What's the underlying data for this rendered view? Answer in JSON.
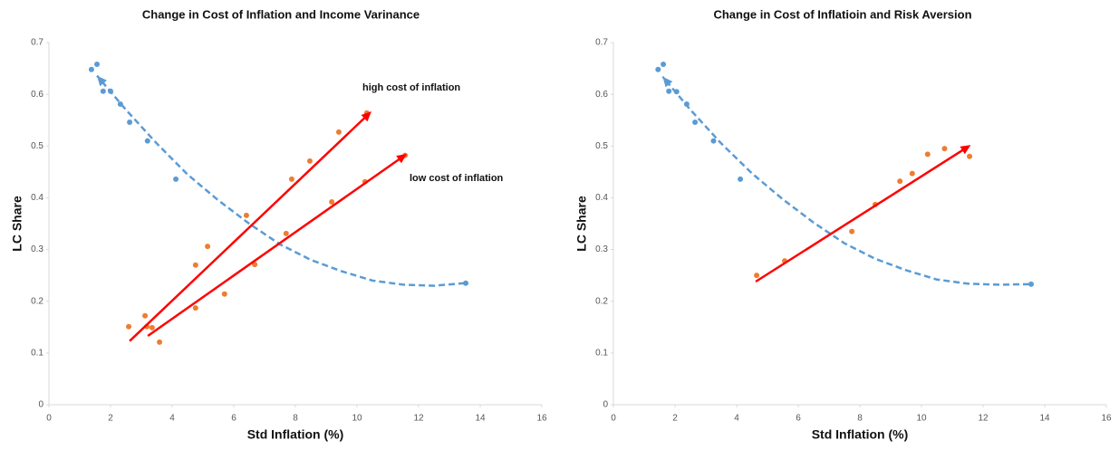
{
  "chart_data": [
    {
      "type": "scatter",
      "title": "Change in Cost of Inflation and Income Varinance",
      "x_label": "Std Inflation (%)",
      "y_label": "LC Share",
      "xlim": [
        0,
        16
      ],
      "ylim": [
        0,
        0.7
      ],
      "xticks": [
        0,
        2,
        4,
        6,
        8,
        10,
        12,
        14,
        16
      ],
      "yticks": [
        0,
        0.1,
        0.2,
        0.3,
        0.4,
        0.5,
        0.6,
        0.7
      ],
      "series": [
        {
          "color": "#5b9bd5",
          "x": [
            1.38,
            1.56,
            1.76,
            2.0,
            2.32,
            2.62,
            3.2,
            4.12,
            13.53
          ],
          "values": [
            0.648,
            0.658,
            0.606,
            0.606,
            0.581,
            0.546,
            0.51,
            0.436,
            0.235
          ]
        },
        {
          "color": "#ed7d31",
          "x": [
            2.59,
            3.12,
            3.18,
            3.35,
            3.59,
            4.76,
            4.76,
            5.15,
            5.7,
            6.41,
            6.68,
            7.7,
            7.88,
            8.47,
            9.18,
            9.41,
            10.26,
            10.32,
            11.56
          ],
          "values": [
            0.151,
            0.172,
            0.151,
            0.149,
            0.121,
            0.187,
            0.27,
            0.306,
            0.214,
            0.366,
            0.271,
            0.331,
            0.436,
            0.471,
            0.392,
            0.527,
            0.431,
            0.564,
            0.482
          ]
        }
      ],
      "trend": {
        "color": "#5b9bd5",
        "x": [
          13.5,
          12.5,
          11.5,
          10.5,
          9.5,
          8.5,
          7.5,
          6.5,
          5.5,
          4.5,
          3.5,
          2.5,
          1.56
        ],
        "values": [
          0.235,
          0.23,
          0.232,
          0.24,
          0.258,
          0.28,
          0.31,
          0.35,
          0.395,
          0.445,
          0.505,
          0.57,
          0.636
        ]
      },
      "arrows": [
        {
          "color": "#ff0000",
          "x": [
            2.62,
            10.47
          ],
          "values": [
            0.123,
            0.567
          ]
        },
        {
          "color": "#ff0000",
          "x": [
            3.21,
            11.62
          ],
          "values": [
            0.133,
            0.485
          ]
        }
      ],
      "annotations": [
        "high cost of inflation",
        "low cost of inflation"
      ]
    },
    {
      "type": "scatter",
      "title": "Change in Cost of Inflatioin and Risk Aversion",
      "x_label": "Std Inflation (%)",
      "y_label": "LC Share",
      "xlim": [
        0,
        16
      ],
      "ylim": [
        0,
        0.7
      ],
      "xticks": [
        0,
        2,
        4,
        6,
        8,
        10,
        12,
        14,
        16
      ],
      "yticks": [
        0,
        0.1,
        0.2,
        0.3,
        0.4,
        0.5,
        0.6,
        0.7
      ],
      "series": [
        {
          "color": "#5b9bd5",
          "x": [
            1.45,
            1.62,
            1.8,
            2.05,
            2.38,
            2.65,
            3.25,
            4.12,
            13.56
          ],
          "values": [
            0.648,
            0.658,
            0.606,
            0.605,
            0.581,
            0.546,
            0.51,
            0.436,
            0.233
          ]
        },
        {
          "color": "#ed7d31",
          "x": [
            4.65,
            5.56,
            7.74,
            8.5,
            9.3,
            9.7,
            10.2,
            10.75,
            11.56
          ],
          "values": [
            0.25,
            0.278,
            0.335,
            0.387,
            0.432,
            0.447,
            0.484,
            0.495,
            0.48
          ]
        }
      ],
      "trend": {
        "color": "#5b9bd5",
        "x": [
          13.5,
          12.5,
          11.5,
          10.5,
          9.5,
          8.5,
          7.5,
          6.5,
          5.5,
          4.5,
          3.5,
          2.5,
          1.6
        ],
        "values": [
          0.233,
          0.232,
          0.234,
          0.242,
          0.26,
          0.282,
          0.312,
          0.352,
          0.397,
          0.447,
          0.505,
          0.57,
          0.634
        ]
      },
      "arrows": [
        {
          "color": "#ff0000",
          "x": [
            4.62,
            11.6
          ],
          "values": [
            0.238,
            0.502
          ]
        }
      ],
      "annotations": []
    }
  ]
}
